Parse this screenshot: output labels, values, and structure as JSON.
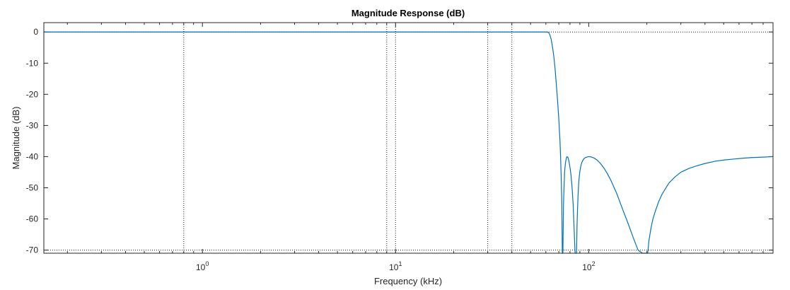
{
  "chart_data": {
    "type": "line",
    "title": "Magnitude Response (dB)",
    "xlabel": "Frequency (kHz)",
    "ylabel": "Magnitude (dB)",
    "xscale": "log",
    "xlim": [
      0.151,
      900
    ],
    "ylim": [
      -71,
      3
    ],
    "grid": true,
    "x_ticks": [
      {
        "base": "10",
        "exp": "0",
        "value": 1
      },
      {
        "base": "10",
        "exp": "1",
        "value": 10
      },
      {
        "base": "10",
        "exp": "2",
        "value": 100
      }
    ],
    "y_ticks": [
      {
        "label": "0",
        "value": 0
      },
      {
        "label": "-10",
        "value": -10
      },
      {
        "label": "-20",
        "value": -20
      },
      {
        "label": "-30",
        "value": -30
      },
      {
        "label": "-40",
        "value": -40
      },
      {
        "label": "-50",
        "value": -50
      },
      {
        "label": "-60",
        "value": -60
      },
      {
        "label": "-70",
        "value": -70
      }
    ],
    "vertical_gridlines": [
      0.8,
      9,
      10,
      30,
      40
    ],
    "horizontal_gridlines": [
      0,
      -70
    ],
    "series": [
      {
        "name": "",
        "color": "#0072bd",
        "x": [
          0.151,
          1,
          10,
          40,
          55,
          60,
          61,
          62,
          63,
          64,
          65,
          66,
          67,
          68,
          69,
          70,
          71,
          71.5,
          72,
          72.5,
          73,
          73.5,
          74,
          74.5,
          75,
          75.5,
          76,
          77,
          78,
          79,
          80,
          81,
          82,
          83,
          84,
          85,
          86,
          86.5,
          87,
          87.5,
          88,
          88.5,
          89,
          89.5,
          90,
          91,
          92,
          93,
          94,
          95,
          97,
          100,
          103,
          106,
          110,
          115,
          120,
          125,
          130,
          140,
          150,
          160,
          170,
          180,
          190,
          198,
          202,
          205,
          210,
          215,
          220,
          230,
          240,
          260,
          280,
          300,
          330,
          360,
          400,
          450,
          500,
          560,
          630,
          700,
          800,
          900
        ],
        "y": [
          0,
          0,
          0,
          0,
          0,
          0,
          0,
          -0.2,
          -1,
          -2.5,
          -5,
          -8,
          -12,
          -17,
          -22,
          -28,
          -35,
          -40,
          -46,
          -54,
          -71,
          -71,
          -56,
          -50,
          -45,
          -43,
          -41.5,
          -40,
          -40.2,
          -41.5,
          -43.5,
          -46,
          -50,
          -55,
          -63,
          -71,
          -71,
          -71,
          -62,
          -57,
          -53,
          -50,
          -47.5,
          -46,
          -44.8,
          -43,
          -42,
          -41.3,
          -40.9,
          -40.5,
          -40.2,
          -40,
          -40.1,
          -40.4,
          -41,
          -42.2,
          -43.7,
          -45.5,
          -47.5,
          -52,
          -57,
          -61.5,
          -66,
          -70,
          -71,
          -71,
          -71,
          -67,
          -63,
          -60,
          -58,
          -54.5,
          -52,
          -48.5,
          -46.5,
          -45,
          -43.8,
          -43,
          -42.2,
          -41.5,
          -41.1,
          -40.8,
          -40.5,
          -40.3,
          -40.15,
          -40
        ]
      }
    ]
  }
}
